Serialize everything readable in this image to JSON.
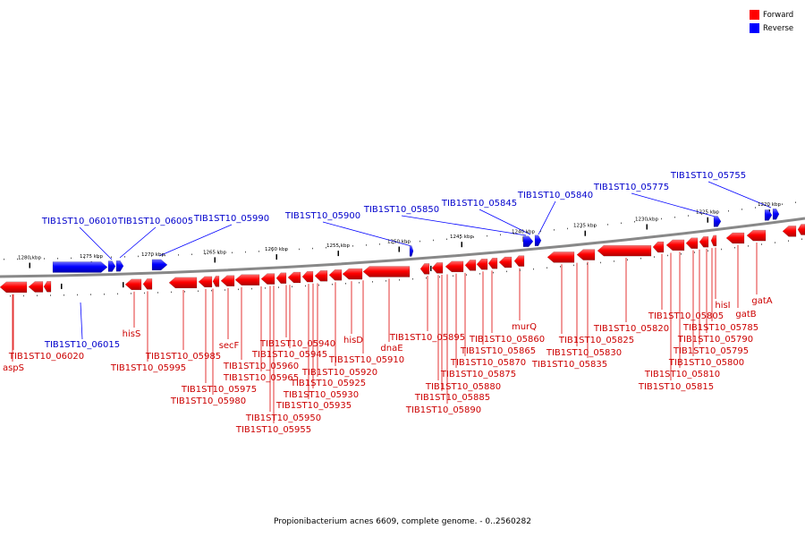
{
  "legend": {
    "forward": {
      "label": "Forward",
      "color": "#ff0000"
    },
    "reverse": {
      "label": "Reverse",
      "color": "#0000ff"
    }
  },
  "caption": "Propionibacterium acnes 6609, complete genome. - 0..2560282",
  "scale_ticks": [
    "1280 kbp",
    "1275 kbp",
    "1270 kbp",
    "1265 kbp",
    "1260 kbp",
    "1255 kbp",
    "1250 kbp",
    "1245 kbp",
    "1240 kbp",
    "1235 kbp",
    "1230 kbp",
    "1225 kbp",
    "1220 kbp"
  ],
  "reverse_genes": [
    "TIB1ST10_06010",
    "TIB1ST10_06005",
    "TIB1ST10_05990",
    "TIB1ST10_05900",
    "TIB1ST10_05850",
    "TIB1ST10_05845",
    "TIB1ST10_05840",
    "TIB1ST10_05775",
    "TIB1ST10_05755",
    "TIB1ST10_06015"
  ],
  "forward_genes": [
    "aspS",
    "TIB1ST10_06020",
    "hisS",
    "TIB1ST10_05995",
    "TIB1ST10_05985",
    "TIB1ST10_05975",
    "TIB1ST10_05980",
    "secF",
    "TIB1ST10_05960",
    "TIB1ST10_05965",
    "TIB1ST10_05950",
    "TIB1ST10_05955",
    "TIB1ST10_05940",
    "TIB1ST10_05945",
    "TIB1ST10_05920",
    "TIB1ST10_05925",
    "TIB1ST10_05930",
    "TIB1ST10_05935",
    "hisD",
    "dnaE",
    "TIB1ST10_05910",
    "TIB1ST10_05895",
    "TIB1ST10_05880",
    "TIB1ST10_05885",
    "TIB1ST10_05890",
    "TIB1ST10_05875",
    "TIB1ST10_05870",
    "TIB1ST10_05865",
    "TIB1ST10_05860",
    "murQ",
    "TIB1ST10_05825",
    "TIB1ST10_05830",
    "TIB1ST10_05835",
    "TIB1ST10_05820",
    "TIB1ST10_05805",
    "TIB1ST10_05785",
    "TIB1ST10_05790",
    "TIB1ST10_05795",
    "TIB1ST10_05800",
    "TIB1ST10_05810",
    "TIB1ST10_05815",
    "hisI",
    "gatB",
    "gatA"
  ]
}
